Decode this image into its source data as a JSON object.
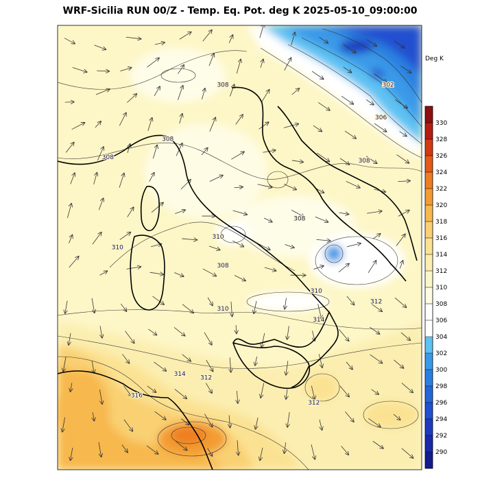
{
  "title": "WRF-Sicilia RUN 00/Z - Temp. Eq. Pot. deg K 2025-05-10_09:00:00",
  "colorbar": {
    "unit": "Deg K",
    "ticks": [
      290,
      292,
      294,
      296,
      298,
      300,
      302,
      304,
      306,
      308,
      310,
      312,
      314,
      316,
      318,
      320,
      322,
      324,
      326,
      328,
      330
    ],
    "colors": {
      "289": "#141b8f",
      "291": "#1a2aa8",
      "293": "#1e3bc0",
      "295": "#2150d0",
      "297": "#2566d8",
      "299": "#2a80e0",
      "301": "#3a9ae8",
      "303": "#5ec2f2",
      "305": "#ffffff",
      "307": "#ffffff",
      "309": "#fdfbe2",
      "311": "#fbf6c8",
      "313": "#fbeeb0",
      "315": "#fbe293",
      "317": "#f9d072",
      "319": "#f7b84e",
      "321": "#f39c33",
      "323": "#ee7d22",
      "325": "#e45a18",
      "327": "#d23a14",
      "329": "#b51d12",
      "331": "#8f0f0f"
    }
  },
  "contour_labels": [
    {
      "text": "308",
      "lat": 45.9,
      "lon": 13.0
    },
    {
      "text": "302",
      "lat": 45.9,
      "lon": 19.9
    },
    {
      "text": "306",
      "lat": 45.0,
      "lon": 19.6
    },
    {
      "text": "308",
      "lat": 44.4,
      "lon": 10.7
    },
    {
      "text": "308",
      "lat": 43.8,
      "lon": 18.9
    },
    {
      "text": "308",
      "lat": 43.9,
      "lon": 8.2
    },
    {
      "text": "308",
      "lat": 42.2,
      "lon": 16.2
    },
    {
      "text": "310",
      "lat": 41.7,
      "lon": 12.8
    },
    {
      "text": "310",
      "lat": 41.4,
      "lon": 8.6
    },
    {
      "text": "308",
      "lat": 40.9,
      "lon": 13.0
    },
    {
      "text": "310",
      "lat": 40.2,
      "lon": 16.9
    },
    {
      "text": "312",
      "lat": 39.9,
      "lon": 19.4
    },
    {
      "text": "310",
      "lat": 39.7,
      "lon": 13.0
    },
    {
      "text": "314",
      "lat": 39.4,
      "lon": 17.0
    },
    {
      "text": "314",
      "lat": 37.9,
      "lon": 11.2
    },
    {
      "text": "312",
      "lat": 37.8,
      "lon": 12.3
    },
    {
      "text": "316",
      "lat": 37.3,
      "lon": 9.4
    },
    {
      "text": "312",
      "lat": 37.1,
      "lon": 16.8
    }
  ]
}
